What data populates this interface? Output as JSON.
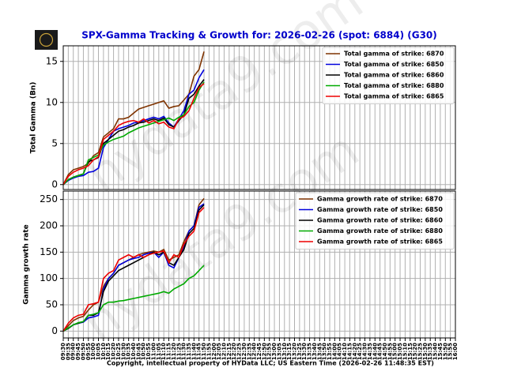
{
  "chart_data": [
    {
      "type": "line",
      "title": "SPX-Gamma Tracking & Growth for: 2026-02-26 (spot: 6884) (G30)",
      "watermark": "hydata9.com",
      "ylabel": "Total Gamma (Bn)",
      "x": [
        "09:30",
        "09:35",
        "09:40",
        "09:45",
        "09:50",
        "09:55",
        "10:00",
        "10:05",
        "10:10",
        "10:15",
        "10:20",
        "10:25",
        "10:30",
        "10:35",
        "10:40",
        "10:45",
        "10:50",
        "10:55",
        "11:00",
        "11:05",
        "11:10",
        "11:15",
        "11:20",
        "11:25",
        "11:30",
        "11:35",
        "11:40",
        "11:45",
        "11:50"
      ],
      "xlim": [
        "09:30",
        "16:00"
      ],
      "ylim": [
        -0.6,
        16.9
      ],
      "yticks": [
        0,
        5,
        10,
        15
      ],
      "grid": true,
      "legend": "upper right",
      "series": [
        {
          "name": "Total gamma of strike: 6870",
          "color": "#7f3300",
          "values": [
            0,
            1.2,
            1.8,
            2.0,
            2.2,
            2.6,
            3.5,
            3.9,
            5.8,
            6.3,
            6.8,
            8.0,
            8.0,
            8.2,
            8.7,
            9.2,
            9.4,
            9.6,
            9.8,
            10.0,
            10.2,
            9.3,
            9.5,
            9.6,
            10.3,
            11.0,
            13.2,
            14.0,
            16.2
          ]
        },
        {
          "name": "Total gamma of strike: 6850",
          "color": "#0000dd",
          "values": [
            0,
            0.5,
            0.8,
            1.0,
            1.1,
            1.5,
            1.6,
            2.0,
            4.5,
            5.5,
            6.5,
            6.8,
            7.0,
            7.2,
            7.5,
            7.6,
            7.8,
            8.0,
            8.2,
            8.0,
            8.3,
            7.5,
            7.0,
            8.0,
            9.0,
            11.0,
            11.5,
            13.0,
            14.0
          ]
        },
        {
          "name": "Total gamma of strike: 6860",
          "color": "#000000",
          "values": [
            0,
            0.6,
            0.9,
            1.1,
            1.3,
            2.8,
            3.0,
            3.3,
            5.0,
            5.5,
            6.0,
            6.5,
            6.7,
            7.0,
            7.2,
            7.5,
            7.6,
            7.8,
            8.0,
            7.8,
            8.1,
            7.3,
            7.0,
            7.8,
            8.5,
            10.5,
            11.0,
            12.0,
            12.8
          ]
        },
        {
          "name": "Total gamma of strike: 6880",
          "color": "#00aa00",
          "values": [
            0,
            0.6,
            0.9,
            1.1,
            1.3,
            3.0,
            3.3,
            3.6,
            4.8,
            5.2,
            5.5,
            5.7,
            5.9,
            6.3,
            6.6,
            6.9,
            7.1,
            7.3,
            7.5,
            7.7,
            7.9,
            8.1,
            7.8,
            8.2,
            8.5,
            9.5,
            10.0,
            11.5,
            12.5
          ]
        },
        {
          "name": "Total gamma of strike: 6865",
          "color": "#ee0000",
          "values": [
            0,
            1.0,
            1.5,
            1.8,
            2.0,
            2.3,
            3.0,
            3.4,
            5.5,
            6.0,
            6.5,
            7.2,
            7.5,
            7.7,
            7.8,
            7.6,
            8.0,
            7.5,
            7.8,
            7.4,
            7.6,
            7.0,
            6.8,
            8.0,
            8.3,
            9.0,
            10.5,
            11.8,
            12.3
          ]
        }
      ]
    },
    {
      "type": "line",
      "watermark": "hydata9.com",
      "ylabel": "Gamma growth rate",
      "xlabel": "Copyright, intellectual property of HYData LLC; US Eastern Time (2026-02-26 11:48:35 EST)",
      "x": [
        "09:30",
        "09:35",
        "09:40",
        "09:45",
        "09:50",
        "09:55",
        "10:00",
        "10:05",
        "10:10",
        "10:15",
        "10:20",
        "10:25",
        "10:30",
        "10:35",
        "10:40",
        "10:45",
        "10:50",
        "10:55",
        "11:00",
        "11:05",
        "11:10",
        "11:15",
        "11:20",
        "11:25",
        "11:30",
        "11:35",
        "11:40",
        "11:45",
        "11:50"
      ],
      "xlim": [
        "09:30",
        "16:00"
      ],
      "xticks": [
        "09:30",
        "09:35",
        "09:40",
        "09:45",
        "09:50",
        "09:55",
        "10:00",
        "10:05",
        "10:10",
        "10:15",
        "10:20",
        "10:25",
        "10:30",
        "10:35",
        "10:40",
        "10:45",
        "10:50",
        "10:55",
        "11:00",
        "11:05",
        "11:10",
        "11:15",
        "11:20",
        "11:25",
        "11:30",
        "11:35",
        "11:40",
        "11:45",
        "11:50",
        "11:55",
        "12:00",
        "12:05",
        "12:10",
        "12:15",
        "12:20",
        "12:25",
        "12:30",
        "12:35",
        "12:40",
        "12:45",
        "12:50",
        "12:55",
        "13:00",
        "13:05",
        "13:10",
        "13:15",
        "13:20",
        "13:25",
        "13:30",
        "13:35",
        "13:40",
        "13:45",
        "13:50",
        "13:55",
        "14:00",
        "14:05",
        "14:10",
        "14:15",
        "14:20",
        "14:25",
        "14:30",
        "14:35",
        "14:40",
        "14:45",
        "14:50",
        "14:55",
        "15:00",
        "15:05",
        "15:10",
        "15:15",
        "15:20",
        "15:25",
        "15:30",
        "15:35",
        "15:40",
        "15:45",
        "15:50",
        "15:55",
        "16:00"
      ],
      "ylim": [
        -13,
        266
      ],
      "yticks": [
        0,
        50,
        100,
        150,
        200,
        250
      ],
      "grid": true,
      "legend": "upper right",
      "series": [
        {
          "name": "Gamma growth rate of strike: 6870",
          "color": "#7f3300",
          "values": [
            0,
            10,
            20,
            25,
            28,
            40,
            50,
            55,
            85,
            100,
            110,
            125,
            130,
            135,
            140,
            145,
            148,
            150,
            152,
            150,
            155,
            135,
            140,
            145,
            170,
            190,
            200,
            240,
            252
          ]
        },
        {
          "name": "Gamma growth rate of strike: 6850",
          "color": "#0000dd",
          "values": [
            0,
            5,
            12,
            15,
            17,
            25,
            27,
            30,
            80,
            100,
            110,
            125,
            130,
            135,
            138,
            140,
            145,
            148,
            150,
            140,
            150,
            125,
            120,
            140,
            160,
            190,
            200,
            235,
            242
          ]
        },
        {
          "name": "Gamma growth rate of strike: 6860",
          "color": "#000000",
          "values": [
            0,
            5,
            12,
            15,
            18,
            30,
            30,
            35,
            75,
            95,
            105,
            115,
            120,
            125,
            130,
            135,
            140,
            145,
            150,
            145,
            150,
            130,
            125,
            140,
            155,
            185,
            195,
            230,
            240
          ]
        },
        {
          "name": "Gamma growth rate of strike: 6880",
          "color": "#00aa00",
          "values": [
            0,
            6,
            12,
            16,
            18,
            30,
            32,
            35,
            50,
            55,
            55,
            57,
            58,
            60,
            62,
            64,
            66,
            68,
            70,
            72,
            75,
            72,
            80,
            85,
            90,
            100,
            105,
            115,
            125
          ]
        },
        {
          "name": "Gamma growth rate of strike: 6865",
          "color": "#ee0000",
          "values": [
            0,
            15,
            25,
            30,
            32,
            50,
            52,
            55,
            100,
            110,
            115,
            135,
            140,
            145,
            140,
            145,
            140,
            145,
            148,
            150,
            152,
            130,
            145,
            140,
            165,
            180,
            190,
            225,
            235
          ]
        }
      ]
    }
  ]
}
